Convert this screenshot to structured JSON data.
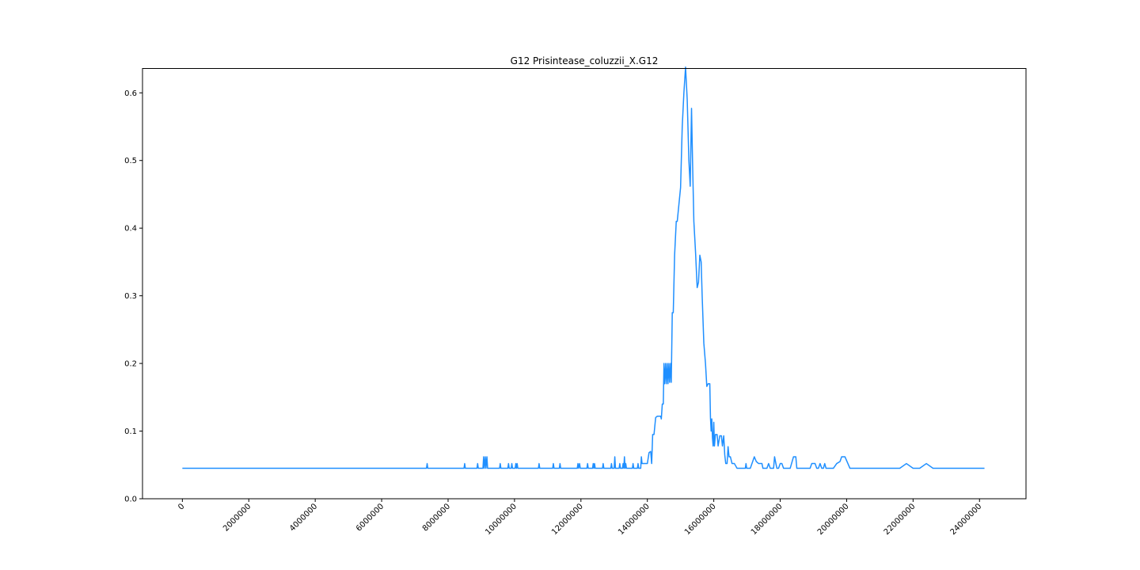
{
  "chart_data": {
    "type": "line",
    "title": "G12 Prisintease_coluzzii_X.G12",
    "xlabel": "",
    "ylabel": "",
    "xlim": [
      -1200000,
      25400000
    ],
    "ylim": [
      0.0,
      0.636
    ],
    "x_ticks": [
      0,
      2000000,
      4000000,
      6000000,
      8000000,
      10000000,
      12000000,
      14000000,
      16000000,
      18000000,
      20000000,
      22000000,
      24000000
    ],
    "x_tick_labels": [
      "0",
      "2000000",
      "4000000",
      "6000000",
      "8000000",
      "10000000",
      "12000000",
      "14000000",
      "16000000",
      "18000000",
      "20000000",
      "22000000",
      "24000000"
    ],
    "y_ticks": [
      0.0,
      0.1,
      0.2,
      0.3,
      0.4,
      0.5,
      0.6
    ],
    "y_tick_labels": [
      "0.0",
      "0.1",
      "0.2",
      "0.3",
      "0.4",
      "0.5",
      "0.6"
    ],
    "grid": false,
    "series": [
      {
        "color": "#1f8fff",
        "points": [
          [
            0,
            0.045
          ],
          [
            7350000,
            0.045
          ],
          [
            7370000,
            0.052
          ],
          [
            7390000,
            0.045
          ],
          [
            8480000,
            0.045
          ],
          [
            8500000,
            0.052
          ],
          [
            8520000,
            0.045
          ],
          [
            8870000,
            0.045
          ],
          [
            8890000,
            0.052
          ],
          [
            8910000,
            0.045
          ],
          [
            9050000,
            0.045
          ],
          [
            9070000,
            0.062
          ],
          [
            9090000,
            0.045
          ],
          [
            9120000,
            0.062
          ],
          [
            9140000,
            0.045
          ],
          [
            9170000,
            0.062
          ],
          [
            9190000,
            0.045
          ],
          [
            9550000,
            0.045
          ],
          [
            9570000,
            0.052
          ],
          [
            9590000,
            0.045
          ],
          [
            9800000,
            0.045
          ],
          [
            9820000,
            0.052
          ],
          [
            9840000,
            0.045
          ],
          [
            9900000,
            0.045
          ],
          [
            9920000,
            0.052
          ],
          [
            9940000,
            0.045
          ],
          [
            10020000,
            0.045
          ],
          [
            10040000,
            0.052
          ],
          [
            10060000,
            0.045
          ],
          [
            10080000,
            0.052
          ],
          [
            10100000,
            0.045
          ],
          [
            10720000,
            0.045
          ],
          [
            10740000,
            0.052
          ],
          [
            10760000,
            0.045
          ],
          [
            11150000,
            0.045
          ],
          [
            11170000,
            0.052
          ],
          [
            11190000,
            0.045
          ],
          [
            11350000,
            0.045
          ],
          [
            11370000,
            0.052
          ],
          [
            11390000,
            0.045
          ],
          [
            11890000,
            0.045
          ],
          [
            11910000,
            0.052
          ],
          [
            11930000,
            0.045
          ],
          [
            11960000,
            0.052
          ],
          [
            11980000,
            0.045
          ],
          [
            12180000,
            0.045
          ],
          [
            12200000,
            0.052
          ],
          [
            12220000,
            0.045
          ],
          [
            12350000,
            0.045
          ],
          [
            12370000,
            0.052
          ],
          [
            12390000,
            0.045
          ],
          [
            12410000,
            0.052
          ],
          [
            12430000,
            0.045
          ],
          [
            12650000,
            0.045
          ],
          [
            12670000,
            0.052
          ],
          [
            12690000,
            0.045
          ],
          [
            12900000,
            0.045
          ],
          [
            12920000,
            0.052
          ],
          [
            12940000,
            0.045
          ],
          [
            13000000,
            0.045
          ],
          [
            13020000,
            0.062
          ],
          [
            13040000,
            0.045
          ],
          [
            13150000,
            0.045
          ],
          [
            13170000,
            0.052
          ],
          [
            13190000,
            0.045
          ],
          [
            13250000,
            0.045
          ],
          [
            13270000,
            0.052
          ],
          [
            13290000,
            0.045
          ],
          [
            13310000,
            0.062
          ],
          [
            13330000,
            0.045
          ],
          [
            13350000,
            0.052
          ],
          [
            13370000,
            0.045
          ],
          [
            13550000,
            0.045
          ],
          [
            13570000,
            0.052
          ],
          [
            13590000,
            0.045
          ],
          [
            13700000,
            0.045
          ],
          [
            13720000,
            0.052
          ],
          [
            13740000,
            0.045
          ],
          [
            13800000,
            0.045
          ],
          [
            13820000,
            0.062
          ],
          [
            13840000,
            0.052
          ],
          [
            14000000,
            0.052
          ],
          [
            14050000,
            0.068
          ],
          [
            14100000,
            0.07
          ],
          [
            14130000,
            0.052
          ],
          [
            14160000,
            0.095
          ],
          [
            14200000,
            0.095
          ],
          [
            14250000,
            0.12
          ],
          [
            14300000,
            0.122
          ],
          [
            14400000,
            0.122
          ],
          [
            14420000,
            0.118
          ],
          [
            14450000,
            0.14
          ],
          [
            14480000,
            0.14
          ],
          [
            14500000,
            0.2
          ],
          [
            14520000,
            0.17
          ],
          [
            14550000,
            0.2
          ],
          [
            14570000,
            0.17
          ],
          [
            14600000,
            0.2
          ],
          [
            14620000,
            0.17
          ],
          [
            14650000,
            0.2
          ],
          [
            14670000,
            0.172
          ],
          [
            14700000,
            0.2
          ],
          [
            14720000,
            0.172
          ],
          [
            14750000,
            0.275
          ],
          [
            14780000,
            0.275
          ],
          [
            14820000,
            0.36
          ],
          [
            14870000,
            0.41
          ],
          [
            14900000,
            0.41
          ],
          [
            15000000,
            0.46
          ],
          [
            15050000,
            0.55
          ],
          [
            15100000,
            0.6
          ],
          [
            15150000,
            0.638
          ],
          [
            15200000,
            0.59
          ],
          [
            15250000,
            0.5
          ],
          [
            15290000,
            0.462
          ],
          [
            15330000,
            0.577
          ],
          [
            15360000,
            0.5
          ],
          [
            15400000,
            0.41
          ],
          [
            15450000,
            0.365
          ],
          [
            15500000,
            0.312
          ],
          [
            15540000,
            0.32
          ],
          [
            15580000,
            0.36
          ],
          [
            15620000,
            0.35
          ],
          [
            15650000,
            0.3
          ],
          [
            15700000,
            0.23
          ],
          [
            15750000,
            0.2
          ],
          [
            15790000,
            0.166
          ],
          [
            15830000,
            0.17
          ],
          [
            15880000,
            0.17
          ],
          [
            15900000,
            0.12
          ],
          [
            15920000,
            0.1
          ],
          [
            15940000,
            0.118
          ],
          [
            15960000,
            0.09
          ],
          [
            15980000,
            0.078
          ],
          [
            16000000,
            0.113
          ],
          [
            16020000,
            0.078
          ],
          [
            16050000,
            0.095
          ],
          [
            16100000,
            0.095
          ],
          [
            16130000,
            0.078
          ],
          [
            16180000,
            0.093
          ],
          [
            16230000,
            0.093
          ],
          [
            16260000,
            0.078
          ],
          [
            16300000,
            0.093
          ],
          [
            16330000,
            0.065
          ],
          [
            16360000,
            0.052
          ],
          [
            16400000,
            0.052
          ],
          [
            16430000,
            0.077
          ],
          [
            16460000,
            0.062
          ],
          [
            16500000,
            0.062
          ],
          [
            16550000,
            0.052
          ],
          [
            16620000,
            0.052
          ],
          [
            16700000,
            0.045
          ],
          [
            16950000,
            0.045
          ],
          [
            16970000,
            0.052
          ],
          [
            16990000,
            0.045
          ],
          [
            17100000,
            0.045
          ],
          [
            17150000,
            0.052
          ],
          [
            17220000,
            0.062
          ],
          [
            17280000,
            0.055
          ],
          [
            17350000,
            0.052
          ],
          [
            17450000,
            0.052
          ],
          [
            17480000,
            0.045
          ],
          [
            17600000,
            0.045
          ],
          [
            17650000,
            0.052
          ],
          [
            17700000,
            0.045
          ],
          [
            17800000,
            0.045
          ],
          [
            17830000,
            0.062
          ],
          [
            17870000,
            0.052
          ],
          [
            17900000,
            0.045
          ],
          [
            17950000,
            0.045
          ],
          [
            18000000,
            0.052
          ],
          [
            18050000,
            0.052
          ],
          [
            18100000,
            0.045
          ],
          [
            18300000,
            0.045
          ],
          [
            18400000,
            0.062
          ],
          [
            18470000,
            0.062
          ],
          [
            18500000,
            0.045
          ],
          [
            18900000,
            0.045
          ],
          [
            18950000,
            0.052
          ],
          [
            19050000,
            0.052
          ],
          [
            19100000,
            0.045
          ],
          [
            19150000,
            0.045
          ],
          [
            19200000,
            0.052
          ],
          [
            19250000,
            0.045
          ],
          [
            19300000,
            0.045
          ],
          [
            19340000,
            0.052
          ],
          [
            19380000,
            0.045
          ],
          [
            19600000,
            0.045
          ],
          [
            19700000,
            0.052
          ],
          [
            19800000,
            0.055
          ],
          [
            19850000,
            0.062
          ],
          [
            19950000,
            0.062
          ],
          [
            20100000,
            0.045
          ],
          [
            21600000,
            0.045
          ],
          [
            21800000,
            0.052
          ],
          [
            22000000,
            0.045
          ],
          [
            22200000,
            0.045
          ],
          [
            22400000,
            0.052
          ],
          [
            22600000,
            0.045
          ],
          [
            24150000,
            0.045
          ]
        ]
      }
    ]
  }
}
